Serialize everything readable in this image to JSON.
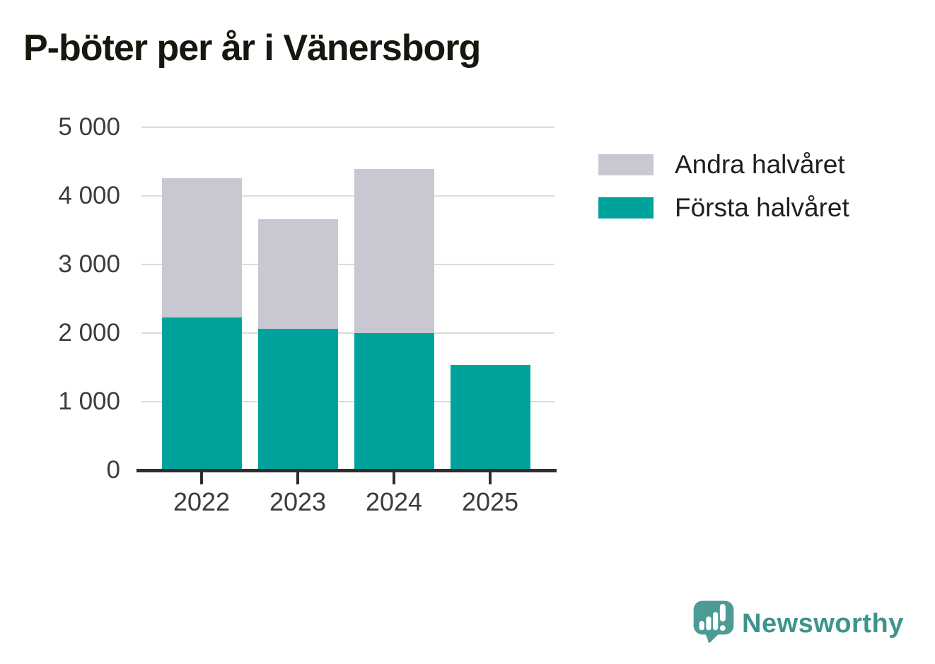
{
  "title": "P-böter per år i Vänersborg",
  "colors": {
    "first_half": "#00A39B",
    "second_half": "#C9C7D1",
    "grid": "#DCDCDC",
    "axis": "#2E2E2C",
    "tick_label": "#3C3C3C",
    "title_text": "#17170F",
    "legend_text": "#1F1F1F",
    "logo_icon": "#4C9C95",
    "logo_text": "#3E948D",
    "background": "#FFFFFF"
  },
  "legend": [
    {
      "label": "Andra halvåret",
      "color": "#C9C7D1"
    },
    {
      "label": "Första halvåret",
      "color": "#00A39B"
    }
  ],
  "chart_data": {
    "type": "bar",
    "stacked": true,
    "title": "P-böter per år i Vänersborg",
    "categories": [
      "2022",
      "2023",
      "2024",
      "2025"
    ],
    "series": [
      {
        "name": "Första halvåret",
        "color": "#00A39B",
        "values": [
          2230,
          2060,
          2000,
          1540
        ]
      },
      {
        "name": "Andra halvåret",
        "color": "#C9C7D1",
        "values": [
          2030,
          1600,
          2390,
          0
        ]
      }
    ],
    "totals": [
      4260,
      3660,
      4390,
      1540
    ],
    "xlabel": "",
    "ylabel": "",
    "ylim": [
      0,
      5000
    ],
    "yticks": [
      0,
      1000,
      2000,
      3000,
      4000,
      5000
    ],
    "ytick_labels": [
      "0",
      "1 000",
      "2 000",
      "3 000",
      "4 000",
      "5 000"
    ],
    "grid": "horizontal",
    "legend_position": "right"
  },
  "logo": {
    "text": "Newsworthy",
    "icon": "newsworthy-speech-bubble-bar-chart-icon"
  }
}
